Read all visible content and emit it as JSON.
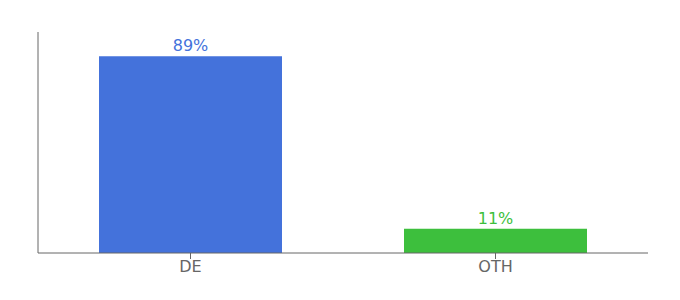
{
  "chart_data": {
    "type": "bar",
    "categories": [
      "DE",
      "OTH"
    ],
    "values": [
      89,
      11
    ],
    "value_labels": [
      "89%",
      "11%"
    ],
    "colors": [
      "#4472db",
      "#3dbf3d"
    ],
    "ylim": [
      0,
      100
    ],
    "data_labels": true,
    "tick_labels": "x",
    "grid": false
  }
}
